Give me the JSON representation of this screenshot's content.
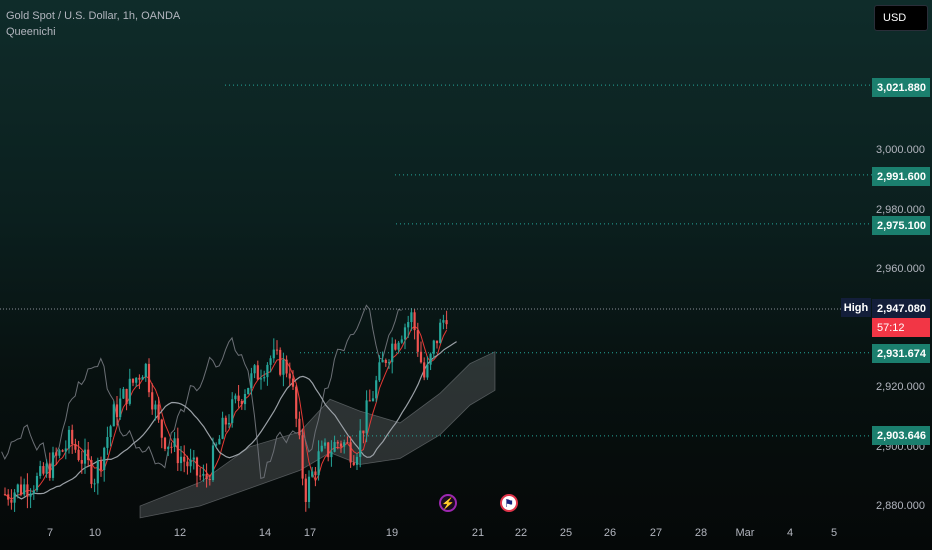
{
  "header": {
    "title": "Gold Spot / U.S. Dollar, 1h, OANDA",
    "indicator": "Queenichi",
    "currency_button": "USD"
  },
  "colors": {
    "up": "#26a69a",
    "down": "#ef5350",
    "level_line": "#26a69a",
    "label_green": "#1b7f6e",
    "label_red": "#f23645",
    "label_navy": "#131e3a"
  },
  "price_axis": {
    "ticks": [
      "3,000.000",
      "2,980.000",
      "2,960.000",
      "2,920.000",
      "2,900.000",
      "2,880.000"
    ]
  },
  "levels": [
    "3,021.880",
    "2,991.600",
    "2,975.100",
    "2,931.674",
    "2,903.646"
  ],
  "high": {
    "label": "High",
    "value": "2,947.080"
  },
  "countdown": "57:12",
  "time_axis": {
    "ticks": [
      "7",
      "10",
      "12",
      "14",
      "17",
      "19",
      "21",
      "22",
      "25",
      "26",
      "27",
      "28",
      "Mar",
      "4",
      "5"
    ]
  },
  "events": [
    "lightning-event-icon",
    "us-flag-event-icon"
  ],
  "chart_data": {
    "type": "candlestick",
    "symbol": "Gold Spot / U.S. Dollar, 1h, OANDA",
    "ylim": [
      2875,
      3030
    ],
    "date_ticks": [
      "7",
      "10",
      "12",
      "14",
      "17",
      "19",
      "21",
      "22",
      "25",
      "26",
      "27",
      "28",
      "Mar",
      "4",
      "5"
    ],
    "levels": [
      3021.88,
      2991.6,
      2975.1,
      2931.674,
      2903.646
    ],
    "last_high": 2947.08,
    "grid": false
  }
}
